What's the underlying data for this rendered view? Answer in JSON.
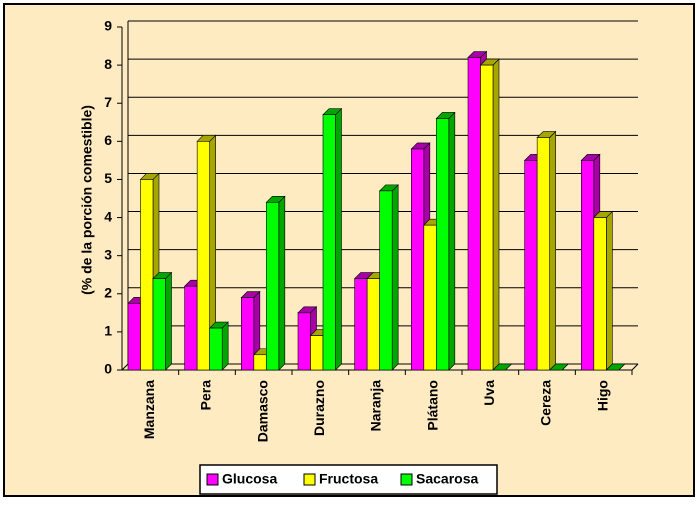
{
  "chart_data": {
    "type": "bar3d",
    "y_label": "(% de la porción comestible)",
    "categories": [
      "Manzana",
      "Pera",
      "Damasco",
      "Durazno",
      "Naranja",
      "Plátano",
      "Uva",
      "Cereza",
      "Higo"
    ],
    "series": [
      {
        "name": "Glucosa",
        "color": "#FF00FF",
        "values": [
          1.75,
          2.2,
          1.9,
          1.5,
          2.4,
          5.8,
          8.2,
          5.5,
          5.5
        ]
      },
      {
        "name": "Fructosa",
        "color": "#FFFF00",
        "values": [
          5.0,
          6.0,
          0.4,
          0.9,
          2.4,
          3.8,
          8.0,
          6.1,
          4.0
        ]
      },
      {
        "name": "Sacarosa",
        "color": "#00FF00",
        "values": [
          2.4,
          1.1,
          4.4,
          6.7,
          4.7,
          6.6,
          0,
          0,
          0
        ]
      }
    ],
    "ylim": [
      0,
      9
    ],
    "yticks": [
      0,
      1,
      2,
      3,
      4,
      5,
      6,
      7,
      8,
      9
    ],
    "grid": true,
    "legend": "bottom"
  }
}
